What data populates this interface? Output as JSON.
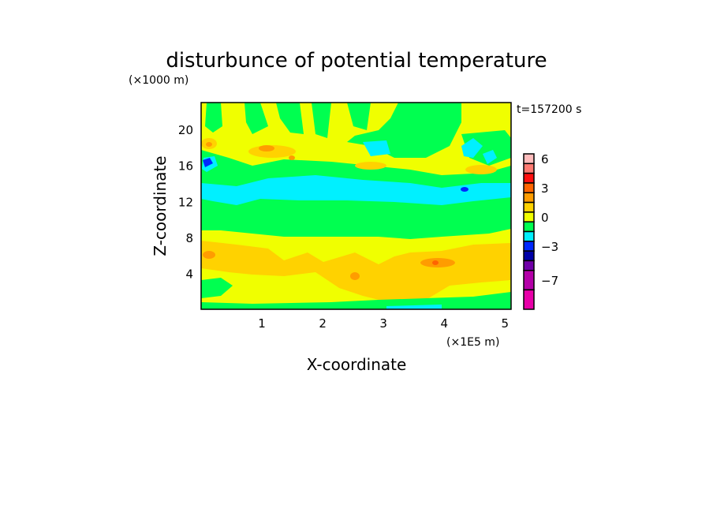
{
  "chart_data": {
    "type": "heatmap",
    "title": "disturbunce of potential temperature",
    "time_label": "t=157200 s",
    "xlabel": "X-coordinate",
    "ylabel": "Z-coordinate",
    "x_unit": "(×1E5 m)",
    "y_unit": "(×1000 m)",
    "xlim": [
      0,
      5.1
    ],
    "ylim": [
      0,
      23
    ],
    "xticks": [
      "1",
      "2",
      "3",
      "4",
      "5"
    ],
    "xtick_values": [
      1,
      2,
      3,
      4,
      5
    ],
    "yticks": [
      "4",
      "8",
      "12",
      "16",
      "20"
    ],
    "ytick_values": [
      4,
      8,
      12,
      16,
      20
    ],
    "colorbar": {
      "levels_top_to_bottom": [
        {
          "color": "#ffbcbc"
        },
        {
          "color": "#ff7a72"
        },
        {
          "color": "#ff1010"
        },
        {
          "color": "#ff6400"
        },
        {
          "color": "#ff9c00"
        },
        {
          "color": "#ffd200"
        },
        {
          "color": "#f0ff00"
        },
        {
          "color": "#00ff50"
        },
        {
          "color": "#00f0ff"
        },
        {
          "color": "#0028ff"
        },
        {
          "color": "#0000a8"
        },
        {
          "color": "#7000a8"
        },
        {
          "color": "#b400a8",
          "double": true
        },
        {
          "color": "#e800a8",
          "double": true
        }
      ],
      "tick_labels": [
        "6",
        "3",
        "0",
        "-3",
        "-7"
      ],
      "tick_values": [
        6,
        3,
        0,
        -3,
        -7
      ]
    }
  }
}
